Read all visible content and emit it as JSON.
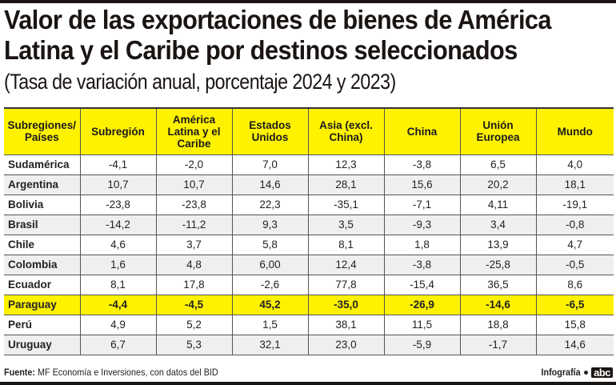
{
  "title_lines": [
    "Valor de las exportaciones de bienes de América",
    "Latina y el Caribe por destinos seleccionados"
  ],
  "subtitle": "(Tasa de variación anual, porcentaje 2024 y 2023)",
  "colors": {
    "header_bg": "#fff200",
    "highlight_row": "#fff200",
    "alt_row": "#efefef",
    "text": "#1a1a1a"
  },
  "table": {
    "headers": [
      "Subregiones/ Países",
      "Subregión",
      "América Latina y el Caribe",
      "Estados Unidos",
      "Asia (excl. China)",
      "China",
      "Unión Europea",
      "Mundo"
    ],
    "rows": [
      {
        "country": "Sudamérica",
        "values": [
          "-4,1",
          "-2,0",
          "7,0",
          "12,3",
          "-3,8",
          "6,5",
          "4,0"
        ]
      },
      {
        "country": "Argentina",
        "values": [
          "10,7",
          "10,7",
          "14,6",
          "28,1",
          "15,6",
          "20,2",
          "18,1"
        ]
      },
      {
        "country": "Bolivia",
        "values": [
          "-23,8",
          "-23,8",
          "22,3",
          "-35,1",
          "-7,1",
          "4,11",
          "-19,1"
        ]
      },
      {
        "country": "Brasil",
        "values": [
          "-14,2",
          "-11,2",
          "9,3",
          "3,5",
          "-9,3",
          "3,4",
          "-0,8"
        ]
      },
      {
        "country": "Chile",
        "values": [
          "4,6",
          "3,7",
          "5,8",
          "8,1",
          "1,8",
          "13,9",
          "4,7"
        ]
      },
      {
        "country": "Colombia",
        "values": [
          "1,6",
          "4,8",
          "6,00",
          "12,4",
          "-3,8",
          "-25,8",
          "-0,5"
        ]
      },
      {
        "country": "Ecuador",
        "values": [
          "8,1",
          "17,8",
          "-2,6",
          "77,8",
          "-15,4",
          "36,5",
          "8,6"
        ]
      },
      {
        "country": "Paraguay",
        "values": [
          "-4,4",
          "-4,5",
          "45,2",
          "-35,0",
          "-26,9",
          "-14,6",
          "-6,5"
        ],
        "highlight": true
      },
      {
        "country": "Perú",
        "values": [
          "4,9",
          "5,2",
          "1,5",
          "38,1",
          "11,5",
          "18,8",
          "15,8"
        ]
      },
      {
        "country": "Uruguay",
        "values": [
          "6,7",
          "5,3",
          "32,1",
          "23,0",
          "-5,9",
          "-1,7",
          "14,6"
        ]
      }
    ]
  },
  "footer": {
    "source_label": "Fuente:",
    "source_text": " MF Economía e Inversiones, con datos del BID",
    "credit_label": "Infografía",
    "logo_text": "abc"
  }
}
